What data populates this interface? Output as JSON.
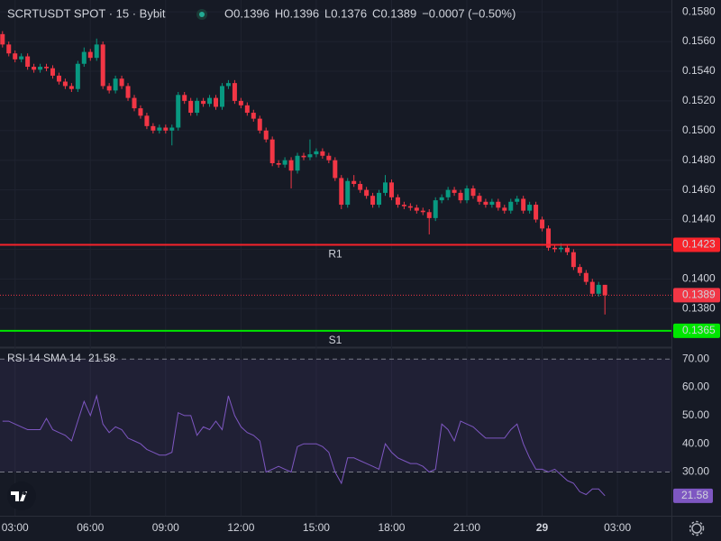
{
  "chart_data": {
    "type": "candlestick",
    "title": "SCRTUSDT SPOT · 15 · Bybit",
    "ohlc_labels": [
      "O",
      "H",
      "L",
      "C"
    ],
    "change_label": "−0.0007 (−0.50%)",
    "open": [
      0.1565,
      0.1558,
      0.1552,
      0.1548,
      0.155,
      0.1543,
      0.1541,
      0.1543,
      0.1542,
      0.1537,
      0.1533,
      0.153,
      0.1528,
      0.1545,
      0.1553,
      0.1549,
      0.1558,
      0.153,
      0.1527,
      0.1535,
      0.153,
      0.1522,
      0.1515,
      0.151,
      0.1503,
      0.15,
      0.1502,
      0.15,
      0.1502,
      0.1524,
      0.152,
      0.1512,
      0.152,
      0.1518,
      0.1522,
      0.1516,
      0.153,
      0.1532,
      0.152,
      0.1517,
      0.1512,
      0.1508,
      0.15,
      0.1494,
      0.1478,
      0.1477,
      0.148,
      0.1473,
      0.1483,
      0.1482,
      0.1484,
      0.1486,
      0.1483,
      0.148,
      0.1468,
      0.145,
      0.1466,
      0.1464,
      0.146,
      0.1456,
      0.145,
      0.1458,
      0.1465,
      0.1455,
      0.145,
      0.1449,
      0.1448,
      0.1446,
      0.1445,
      0.1441,
      0.1453,
      0.1455,
      0.146,
      0.1458,
      0.1453,
      0.1461,
      0.1456,
      0.1452,
      0.145,
      0.1452,
      0.1448,
      0.1446,
      0.1452,
      0.1454,
      0.1446,
      0.145,
      0.144,
      0.1434,
      0.1421,
      0.142,
      0.1421,
      0.1418,
      0.1408,
      0.1404,
      0.1398,
      0.139,
      0.1396
    ],
    "high": [
      0.1567,
      0.156,
      0.1554,
      0.1552,
      0.1552,
      0.1545,
      0.1545,
      0.1545,
      0.1544,
      0.1539,
      0.1535,
      0.1532,
      0.1547,
      0.1556,
      0.1555,
      0.1562,
      0.156,
      0.1532,
      0.1537,
      0.1537,
      0.1532,
      0.1524,
      0.1517,
      0.1512,
      0.1505,
      0.1504,
      0.1504,
      0.1504,
      0.1526,
      0.1526,
      0.1522,
      0.1522,
      0.1522,
      0.1524,
      0.1524,
      0.1532,
      0.1534,
      0.1534,
      0.1522,
      0.1519,
      0.1514,
      0.151,
      0.1502,
      0.1496,
      0.148,
      0.1482,
      0.1482,
      0.1485,
      0.1485,
      0.1494,
      0.1488,
      0.1488,
      0.1485,
      0.1482,
      0.147,
      0.1468,
      0.147,
      0.1466,
      0.1462,
      0.1458,
      0.146,
      0.147,
      0.1467,
      0.1457,
      0.1452,
      0.1451,
      0.145,
      0.1448,
      0.1447,
      0.1455,
      0.1457,
      0.1462,
      0.1462,
      0.146,
      0.1463,
      0.1463,
      0.1458,
      0.1454,
      0.1454,
      0.1454,
      0.145,
      0.1454,
      0.1456,
      0.1456,
      0.1452,
      0.1452,
      0.1442,
      0.1436,
      0.1423,
      0.1424,
      0.1423,
      0.142,
      0.141,
      0.1406,
      0.14,
      0.1398,
      0.1396
    ],
    "low": [
      0.1556,
      0.155,
      0.1546,
      0.1546,
      0.1541,
      0.1539,
      0.1539,
      0.154,
      0.1535,
      0.1531,
      0.1528,
      0.1526,
      0.1526,
      0.1543,
      0.1547,
      0.1547,
      0.1528,
      0.1525,
      0.1525,
      0.1528,
      0.152,
      0.1513,
      0.1508,
      0.1501,
      0.1498,
      0.1498,
      0.1498,
      0.149,
      0.15,
      0.1518,
      0.151,
      0.151,
      0.1516,
      0.1516,
      0.1514,
      0.1514,
      0.1528,
      0.1518,
      0.1515,
      0.151,
      0.1506,
      0.1498,
      0.1492,
      0.1476,
      0.1475,
      0.1475,
      0.1461,
      0.1471,
      0.148,
      0.148,
      0.1482,
      0.1481,
      0.1478,
      0.1466,
      0.1447,
      0.1448,
      0.1462,
      0.1458,
      0.1454,
      0.1448,
      0.1448,
      0.1456,
      0.1453,
      0.1448,
      0.1447,
      0.1446,
      0.1444,
      0.1443,
      0.143,
      0.1439,
      0.1451,
      0.1453,
      0.1456,
      0.1451,
      0.1451,
      0.1454,
      0.145,
      0.1448,
      0.1448,
      0.1446,
      0.1444,
      0.1444,
      0.145,
      0.1444,
      0.1444,
      0.1438,
      0.1432,
      0.1419,
      0.1418,
      0.1418,
      0.1416,
      0.1406,
      0.1402,
      0.1396,
      0.1388,
      0.1388,
      0.1376
    ],
    "close": [
      0.1558,
      0.1552,
      0.1548,
      0.155,
      0.1543,
      0.1541,
      0.1543,
      0.1542,
      0.1537,
      0.1533,
      0.153,
      0.1528,
      0.1545,
      0.1553,
      0.1549,
      0.1558,
      0.153,
      0.1527,
      0.1535,
      0.153,
      0.1522,
      0.1515,
      0.151,
      0.1503,
      0.15,
      0.1502,
      0.15,
      0.1502,
      0.1524,
      0.152,
      0.1512,
      0.152,
      0.1518,
      0.1522,
      0.1516,
      0.153,
      0.1532,
      0.152,
      0.1517,
      0.1512,
      0.1508,
      0.15,
      0.1494,
      0.1478,
      0.1477,
      0.148,
      0.1473,
      0.1483,
      0.1482,
      0.1484,
      0.1486,
      0.1483,
      0.148,
      0.1468,
      0.145,
      0.1466,
      0.1464,
      0.146,
      0.1456,
      0.145,
      0.1458,
      0.1465,
      0.1455,
      0.145,
      0.1449,
      0.1448,
      0.1446,
      0.1445,
      0.1441,
      0.1453,
      0.1455,
      0.146,
      0.1458,
      0.1453,
      0.1461,
      0.1456,
      0.1452,
      0.145,
      0.1452,
      0.1448,
      0.1446,
      0.1452,
      0.1454,
      0.1446,
      0.145,
      0.144,
      0.1434,
      0.1421,
      0.142,
      0.1421,
      0.1418,
      0.1408,
      0.1404,
      0.1398,
      0.139,
      0.1396,
      0.1389
    ],
    "up_color": "#089981",
    "down_color": "#f23645",
    "xlim": [
      -0.4,
      106.6
    ],
    "xticks": [
      {
        "value": 2,
        "label": "03:00"
      },
      {
        "value": 14,
        "label": "06:00"
      },
      {
        "value": 26,
        "label": "09:00"
      },
      {
        "value": 38,
        "label": "12:00"
      },
      {
        "value": 50,
        "label": "15:00"
      },
      {
        "value": 62,
        "label": "18:00"
      },
      {
        "value": 74,
        "label": "21:00"
      },
      {
        "value": 86,
        "label": "29"
      },
      {
        "value": 98,
        "label": "03:00"
      }
    ],
    "ylim": [
      0.1354,
      0.1588
    ],
    "yticks": [
      {
        "value": 0.158,
        "label": "0.1580"
      },
      {
        "value": 0.156,
        "label": "0.1560"
      },
      {
        "value": 0.154,
        "label": "0.1540"
      },
      {
        "value": 0.152,
        "label": "0.1520"
      },
      {
        "value": 0.15,
        "label": "0.1500"
      },
      {
        "value": 0.148,
        "label": "0.1480"
      },
      {
        "value": 0.146,
        "label": "0.1460"
      },
      {
        "value": 0.144,
        "label": "0.1440"
      },
      {
        "value": 0.142,
        "label": "0.1420"
      },
      {
        "value": 0.14,
        "label": "0.1400"
      },
      {
        "value": 0.138,
        "label": "0.1380"
      }
    ],
    "levels": [
      {
        "name": "R1",
        "value": 0.1423,
        "color": "#f7232a"
      },
      {
        "name": "S1",
        "value": 0.1365,
        "color": "#00e600"
      }
    ],
    "last_price_color": "#f23645",
    "rsi": {
      "type": "line",
      "title": "RSI 14 SMA 14",
      "color": "#7e57c2",
      "values": [
        48,
        48,
        47,
        46,
        45,
        45,
        45,
        49,
        45,
        44,
        43,
        41,
        48,
        55,
        50,
        57,
        47,
        44,
        46,
        45,
        42,
        41,
        40,
        38,
        37,
        36,
        36,
        37,
        51,
        50,
        50,
        43,
        46,
        45,
        48,
        45,
        57,
        50,
        46,
        44,
        43,
        41,
        30,
        31,
        32,
        31,
        30,
        39,
        40,
        40,
        40,
        39,
        37,
        30,
        26,
        35,
        35,
        34,
        33,
        32,
        31,
        40,
        37,
        35,
        34,
        33,
        33,
        32,
        30,
        31,
        47,
        45,
        41,
        48,
        47,
        46,
        44,
        42,
        42,
        42,
        42,
        45,
        47,
        40,
        35,
        31,
        31,
        30,
        31,
        29,
        27,
        26,
        23,
        22,
        24,
        24,
        21.58
      ],
      "ylim": [
        14.5,
        73.6
      ],
      "yticks": [
        {
          "value": 70,
          "label": "70.00"
        },
        {
          "value": 60,
          "label": "60.00"
        },
        {
          "value": 50,
          "label": "50.00"
        },
        {
          "value": 40,
          "label": "40.00"
        },
        {
          "value": 30,
          "label": "30.00"
        }
      ],
      "band": [
        30,
        70
      ]
    }
  }
}
